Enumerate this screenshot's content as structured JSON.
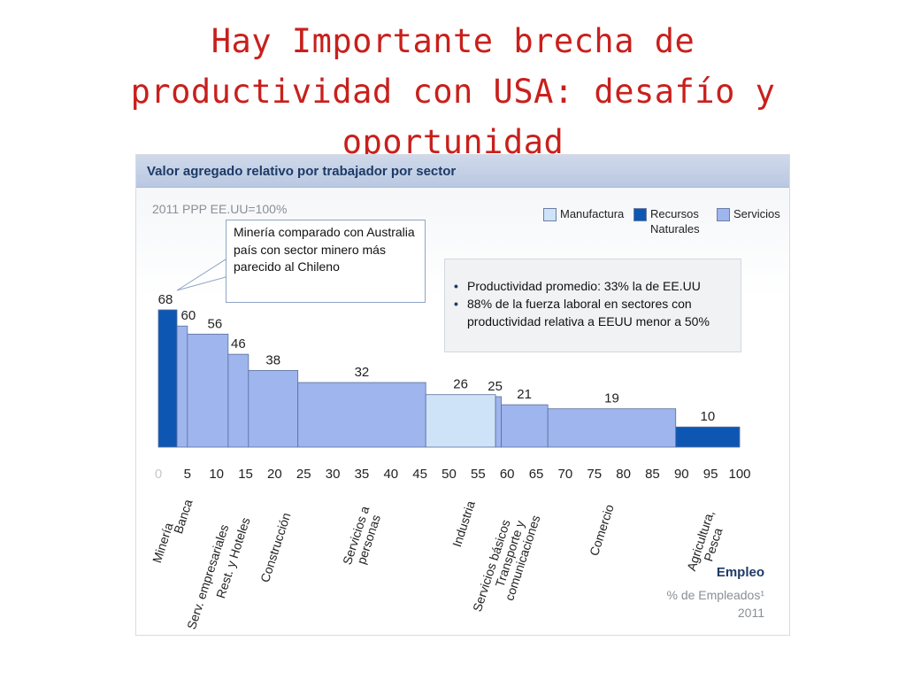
{
  "slide": {
    "title_lines": [
      "Hay Importante brecha de",
      "productividad con USA: desafío y",
      "oportunidad"
    ]
  },
  "chart_data": {
    "type": "bar",
    "title": "Valor agregado relativo por trabajador por sector",
    "subtitle": "2011 PPP  EE.UU=100%",
    "xlabel": "Empleo",
    "xlabel_sub": "% de Empleados¹",
    "xlabel_year": "2011",
    "xlim": [
      0,
      100
    ],
    "ylim": [
      0,
      80
    ],
    "x_ticks": [
      "0",
      "5",
      "10",
      "15",
      "20",
      "25",
      "30",
      "35",
      "40",
      "45",
      "50",
      "55",
      "60",
      "65",
      "70",
      "75",
      "80",
      "85",
      "90",
      "95",
      "100"
    ],
    "legend": [
      {
        "label": "Manufactura",
        "color": "#cfe3f8"
      },
      {
        "label": "Recursos Naturales",
        "color": "#0d57b3"
      },
      {
        "label": "Servicios",
        "color": "#9fb5ee"
      }
    ],
    "legend_position": "top-right",
    "bars": [
      {
        "sector": "Minería",
        "x_start": 0,
        "x_end": 3.2,
        "value": 68,
        "group": "Recursos Naturales"
      },
      {
        "sector": "Banca",
        "x_start": 3.2,
        "x_end": 5,
        "value": 60,
        "group": "Servicios"
      },
      {
        "sector": "Serv. empresariales",
        "x_start": 5,
        "x_end": 12,
        "value": 56,
        "group": "Servicios"
      },
      {
        "sector": "Rest. y Hoteles",
        "x_start": 12,
        "x_end": 15.5,
        "value": 46,
        "group": "Servicios"
      },
      {
        "sector": "Construcción",
        "x_start": 15.5,
        "x_end": 24,
        "value": 38,
        "group": "Servicios"
      },
      {
        "sector": "Servicios a personas",
        "x_start": 24,
        "x_end": 46,
        "value": 32,
        "group": "Servicios"
      },
      {
        "sector": "Industria",
        "x_start": 46,
        "x_end": 58,
        "value": 26,
        "group": "Manufactura"
      },
      {
        "sector": "Servicios básicos",
        "x_start": 58,
        "x_end": 59,
        "value": 25,
        "group": "Servicios"
      },
      {
        "sector": "Transporte y comunicaciones",
        "x_start": 59,
        "x_end": 67,
        "value": 21,
        "group": "Servicios"
      },
      {
        "sector": "Comercio",
        "x_start": 67,
        "x_end": 89,
        "value": 19,
        "group": "Servicios"
      },
      {
        "sector": "Agricultura, Pesca",
        "x_start": 89,
        "x_end": 100,
        "value": 10,
        "group": "Recursos Naturales"
      }
    ],
    "callout": "Minería comparado con Australia país con sector minero más parecido al Chileno",
    "notes": [
      "Productividad promedio: 33% la de EE.UU",
      "88% de la fuerza laboral en sectores con productividad relativa a EEUU menor a 50%"
    ]
  }
}
